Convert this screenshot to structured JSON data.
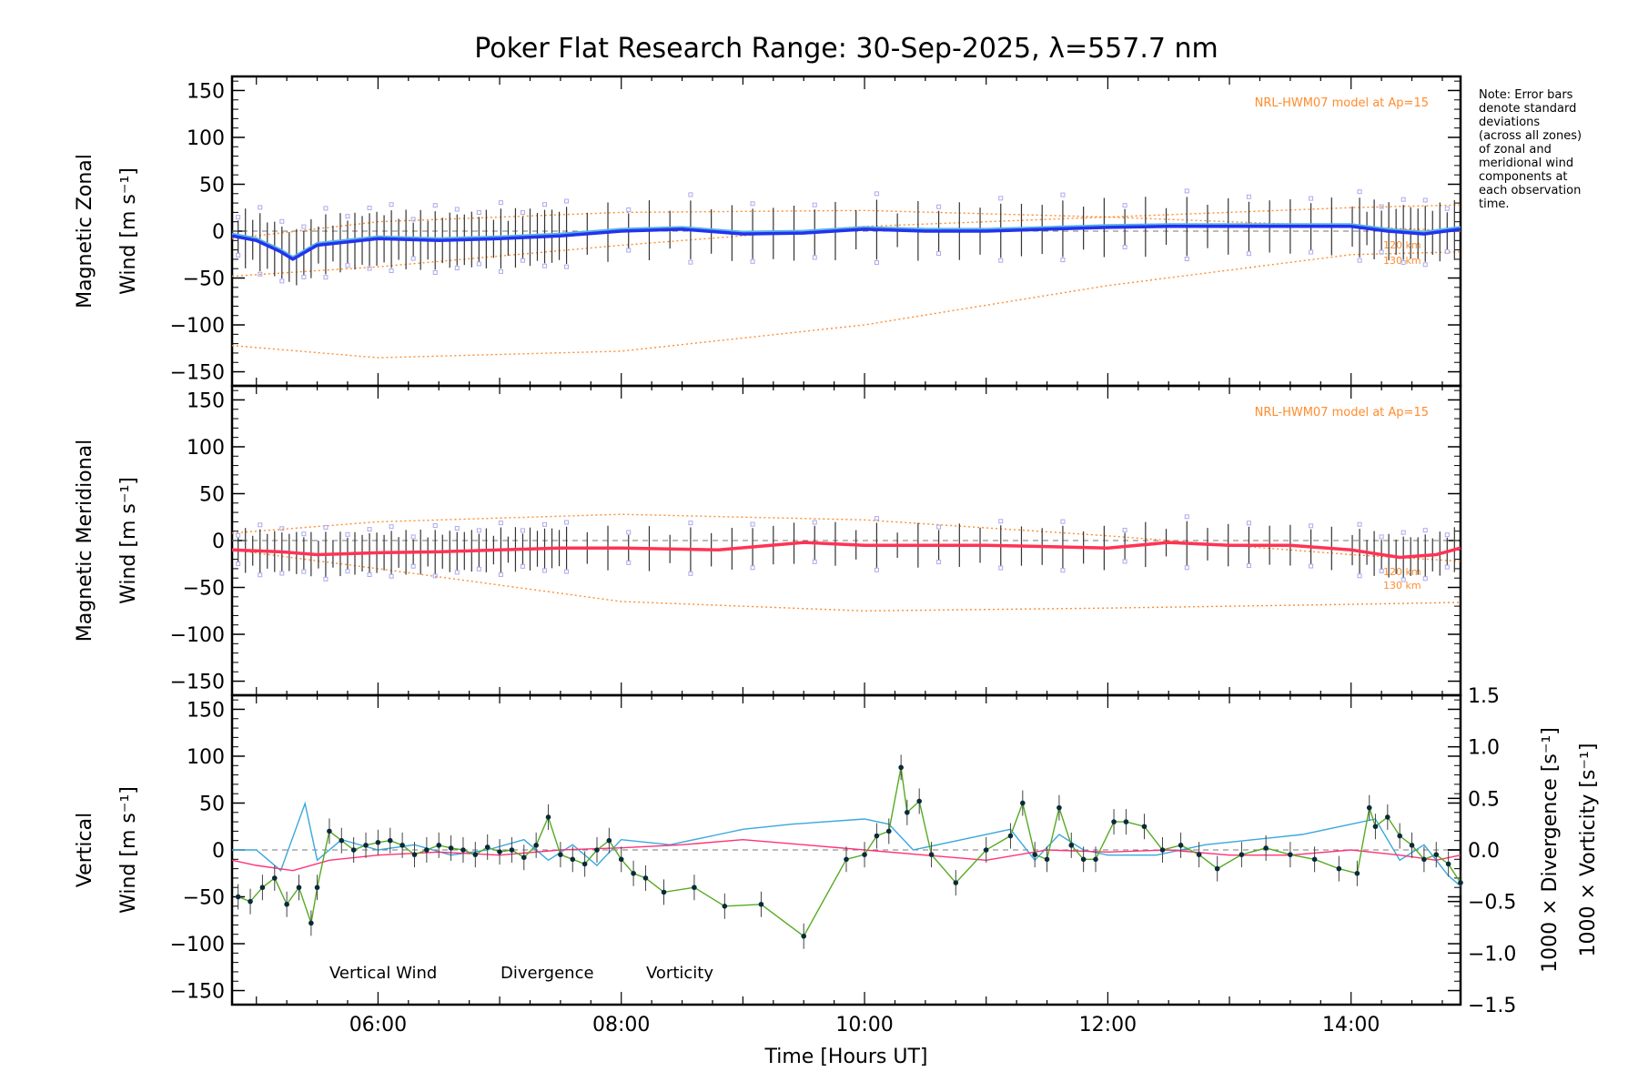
{
  "colors": {
    "zonal": "#2233ee",
    "zonal_fit": "#59b2e6",
    "meridional": "#ff3355",
    "vertical": "#55aa22",
    "divergence": "#3aa7dd",
    "vorticity": "#ff3377",
    "model": "#ff8c2e",
    "zone_sample": "#aaaaee"
  },
  "chart_data": [
    {
      "type": "line",
      "name": "zonal",
      "title": "Poker Flat Research Range: 30-Sep-2025, λ=557.7 nm",
      "ylabel_line1": "Magnetic Zonal",
      "ylabel_line2": "Wind [m s⁻¹]",
      "ylim": [
        -165,
        165
      ],
      "yticks": [
        150,
        100,
        50,
        0,
        -50,
        -100,
        -150
      ],
      "model_label": "NRL-HWM07 model at Ap=15",
      "altitude_labels": [
        "120 km",
        "130 km"
      ],
      "note_lines": [
        "Note: Error bars",
        "denote standard",
        "deviations",
        "(across all zones)",
        "of zonal and",
        "meridional wind",
        "components at",
        "each observation",
        "time."
      ],
      "series": [
        {
          "name": "Zonal wind",
          "x": [
            4.8,
            5.0,
            5.2,
            5.3,
            5.5,
            6.0,
            6.5,
            7.0,
            7.5,
            8.0,
            8.5,
            9.0,
            9.5,
            10.0,
            10.5,
            11.0,
            11.5,
            12.0,
            12.5,
            13.0,
            13.5,
            14.0,
            14.3,
            14.6,
            14.9
          ],
          "y": [
            -5,
            -10,
            -22,
            -30,
            -15,
            -8,
            -10,
            -8,
            -5,
            0,
            2,
            -3,
            -2,
            2,
            0,
            0,
            2,
            4,
            5,
            5,
            5,
            5,
            0,
            -3,
            2
          ]
        },
        {
          "name": "Model 120 km",
          "x": [
            4.8,
            6,
            8,
            10,
            12,
            14,
            14.9
          ],
          "y": [
            -8,
            10,
            20,
            22,
            15,
            5,
            0
          ]
        },
        {
          "name": "Model 130 km",
          "x": [
            4.8,
            6,
            8,
            10,
            12,
            14,
            14.9
          ],
          "y": [
            -48,
            -38,
            -15,
            5,
            15,
            25,
            28
          ]
        },
        {
          "name": "Model low",
          "x": [
            4.8,
            6,
            8,
            10,
            12,
            14,
            14.9
          ],
          "y": [
            -122,
            -135,
            -128,
            -100,
            -58,
            -25,
            -22
          ]
        }
      ]
    },
    {
      "type": "line",
      "name": "meridional",
      "ylabel_line1": "Magnetic Meridional",
      "ylabel_line2": "Wind [m s⁻¹]",
      "ylim": [
        -165,
        165
      ],
      "yticks": [
        150,
        100,
        50,
        0,
        -50,
        -100,
        -150
      ],
      "model_label": "NRL-HWM07 model at Ap=15",
      "altitude_labels": [
        "120 km",
        "130 km"
      ],
      "series": [
        {
          "name": "Meridional wind",
          "x": [
            4.8,
            5.2,
            5.5,
            6.0,
            6.5,
            7.0,
            7.5,
            8.0,
            8.8,
            9.5,
            10.0,
            11.0,
            12.0,
            12.5,
            13.0,
            13.5,
            14.0,
            14.4,
            14.7,
            14.9
          ],
          "y": [
            -10,
            -12,
            -15,
            -13,
            -12,
            -10,
            -8,
            -8,
            -10,
            -2,
            -5,
            -5,
            -8,
            -2,
            -5,
            -5,
            -10,
            -18,
            -15,
            -8
          ]
        },
        {
          "name": "Model 120 km",
          "x": [
            4.8,
            6,
            8,
            10,
            12,
            14,
            14.9
          ],
          "y": [
            8,
            20,
            28,
            22,
            5,
            -15,
            -22
          ]
        },
        {
          "name": "Model 130 km",
          "x": [
            4.8,
            6,
            8,
            10,
            12,
            14,
            14.9
          ],
          "y": [
            -10,
            -30,
            -65,
            -75,
            -72,
            -68,
            -66
          ]
        }
      ]
    },
    {
      "type": "line",
      "name": "vertical",
      "xlabel": "Time [Hours UT]",
      "xlim": [
        4.8,
        14.9
      ],
      "xticks": [
        6,
        8,
        10,
        12,
        14
      ],
      "xtick_labels": [
        "06:00",
        "08:00",
        "10:00",
        "12:00",
        "14:00"
      ],
      "ylabel_line1": "Vertical",
      "ylabel_line2": "Wind [m s⁻¹]",
      "ylim": [
        -165,
        165
      ],
      "yticks": [
        150,
        100,
        50,
        0,
        -50,
        -100,
        -150
      ],
      "y2_label_divergence": "1000 × Divergence [s⁻¹]",
      "y2_label_vorticity": "1000 × Vorticity [s⁻¹]",
      "y2lim": [
        -1.5,
        1.5
      ],
      "y2ticks": [
        1.5,
        1.0,
        0.5,
        0.0,
        -0.5,
        -1.0,
        -1.5
      ],
      "y2tick_labels": [
        "1.5",
        "1.0",
        "0.5",
        "0.0",
        "-0.5",
        "-1.0",
        "-1.5"
      ],
      "legend": [
        "Vertical Wind",
        "Divergence",
        "Vorticity"
      ],
      "series": [
        {
          "name": "Vertical Wind",
          "x": [
            4.85,
            4.95,
            5.05,
            5.15,
            5.25,
            5.35,
            5.45,
            5.5,
            5.6,
            5.7,
            5.8,
            5.9,
            6.0,
            6.1,
            6.2,
            6.3,
            6.4,
            6.5,
            6.6,
            6.7,
            6.8,
            6.9,
            7.0,
            7.1,
            7.2,
            7.3,
            7.4,
            7.5,
            7.6,
            7.7,
            7.8,
            7.9,
            8.0,
            8.1,
            8.2,
            8.35,
            8.6,
            8.85,
            9.15,
            9.5,
            9.85,
            10.0,
            10.1,
            10.2,
            10.3,
            10.35,
            10.45,
            10.55,
            10.75,
            11.0,
            11.2,
            11.3,
            11.4,
            11.5,
            11.6,
            11.7,
            11.8,
            11.9,
            12.05,
            12.15,
            12.3,
            12.45,
            12.6,
            12.75,
            12.9,
            13.1,
            13.3,
            13.5,
            13.7,
            13.9,
            14.05,
            14.15,
            14.2,
            14.3,
            14.4,
            14.5,
            14.6,
            14.7,
            14.8,
            14.9
          ],
          "y": [
            -50,
            -55,
            -40,
            -30,
            -58,
            -40,
            -78,
            -40,
            20,
            10,
            0,
            5,
            8,
            10,
            5,
            -5,
            0,
            5,
            2,
            0,
            -5,
            3,
            -2,
            0,
            -8,
            5,
            35,
            -5,
            -10,
            -15,
            0,
            10,
            -10,
            -25,
            -30,
            -45,
            -40,
            -60,
            -58,
            -92,
            -10,
            -5,
            15,
            20,
            88,
            40,
            52,
            -5,
            -35,
            0,
            15,
            50,
            -5,
            -10,
            45,
            5,
            -10,
            -10,
            30,
            30,
            25,
            0,
            5,
            -5,
            -20,
            -5,
            2,
            -5,
            -10,
            -20,
            -25,
            45,
            25,
            35,
            15,
            5,
            -10,
            -5,
            -15,
            -35
          ]
        },
        {
          "name": "Divergence",
          "x": [
            4.8,
            5.0,
            5.2,
            5.4,
            5.5,
            5.7,
            6.0,
            6.3,
            6.6,
            6.9,
            7.2,
            7.4,
            7.6,
            7.8,
            8.0,
            8.4,
            8.8,
            9.0,
            9.4,
            10.0,
            10.2,
            10.4,
            10.8,
            11.2,
            11.4,
            11.6,
            11.8,
            12.0,
            12.4,
            12.8,
            13.2,
            13.6,
            14.0,
            14.2,
            14.4,
            14.6,
            14.8,
            14.9
          ],
          "y": [
            0.0,
            0.0,
            -0.2,
            0.45,
            -0.1,
            0.1,
            0.0,
            0.05,
            -0.05,
            0.0,
            0.1,
            -0.1,
            0.05,
            -0.15,
            0.1,
            0.05,
            0.15,
            0.2,
            0.25,
            0.3,
            0.25,
            0.0,
            0.1,
            0.2,
            -0.1,
            0.15,
            0.0,
            -0.05,
            -0.05,
            0.05,
            0.1,
            0.15,
            0.25,
            0.3,
            -0.1,
            0.05,
            -0.25,
            -0.35
          ]
        },
        {
          "name": "Vorticity",
          "x": [
            4.8,
            5.0,
            5.3,
            5.6,
            6.0,
            6.5,
            7.0,
            7.5,
            8.0,
            8.5,
            9.0,
            9.5,
            10.0,
            10.5,
            11.0,
            11.5,
            12.0,
            12.5,
            13.0,
            13.5,
            14.0,
            14.4,
            14.7,
            14.9
          ],
          "y": [
            -0.1,
            -0.15,
            -0.2,
            -0.1,
            -0.05,
            -0.02,
            -0.05,
            0.0,
            0.02,
            0.05,
            0.1,
            0.05,
            0.0,
            -0.05,
            -0.1,
            0.0,
            -0.02,
            0.0,
            -0.05,
            -0.05,
            0.0,
            -0.05,
            -0.1,
            -0.05
          ]
        }
      ]
    }
  ]
}
